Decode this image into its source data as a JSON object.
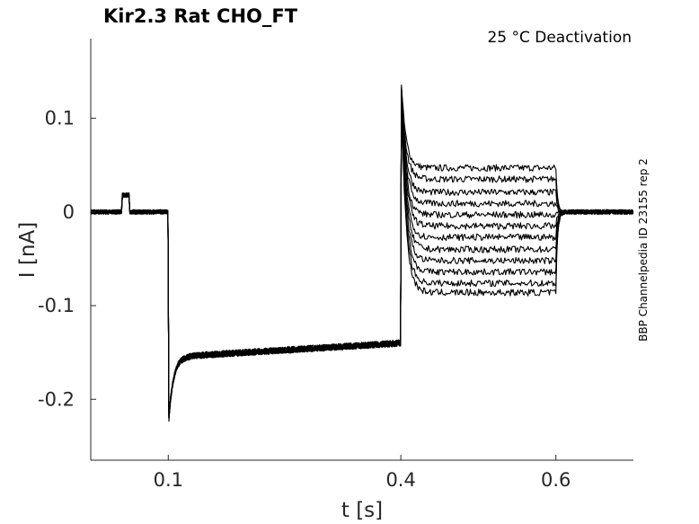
{
  "chart_data": {
    "type": "line",
    "title": "Kir2.3  Rat  CHO_FT",
    "subtitle": "25 °C  Deactivation",
    "xlabel": "t [s]",
    "ylabel": "I [nA]",
    "side_label": "BBP Channelpedia ID 23155 rep 2",
    "xlim": [
      0.0,
      0.7
    ],
    "ylim": [
      -0.265,
      0.185
    ],
    "xticks": [
      0.1,
      0.4,
      0.6
    ],
    "xtick_labels": [
      "0.1",
      "0.4",
      "0.6"
    ],
    "yticks": [
      0.1,
      0,
      -0.1,
      -0.2
    ],
    "ytick_labels": [
      "0.1",
      "0",
      "-0.1",
      "-0.2"
    ],
    "grid": false,
    "line_color": "#000000",
    "protocol": {
      "baseline_nA": 0.0,
      "artifact": {
        "t_start": 0.04,
        "t_end": 0.05,
        "amplitude_nA": 0.018
      },
      "step1": {
        "t_start": 0.1,
        "t_end": 0.4,
        "peak_nA": -0.23,
        "steady_start_nA": -0.155,
        "steady_end_nA": -0.14
      },
      "step2": {
        "t_start": 0.4,
        "t_end": 0.6,
        "peak_nA": 0.147
      },
      "step2_steady_levels_nA": [
        0.047,
        0.035,
        0.021,
        0.009,
        -0.003,
        -0.015,
        -0.027,
        -0.04,
        -0.052,
        -0.064,
        -0.076,
        -0.086
      ]
    }
  }
}
